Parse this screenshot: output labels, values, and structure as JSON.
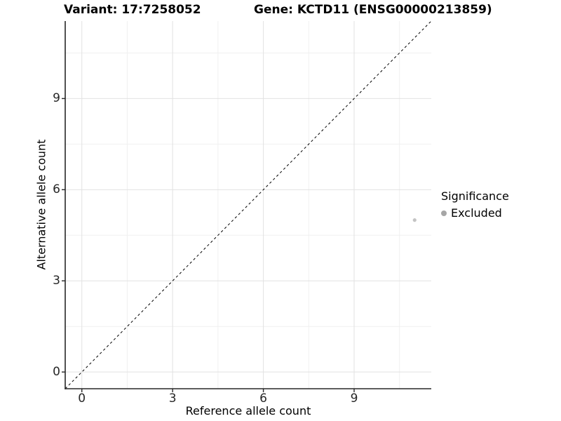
{
  "title": {
    "variant": "Variant: 17:7258052",
    "gene": "Gene: KCTD11 (ENSG00000213859)"
  },
  "chart_data": {
    "type": "scatter",
    "title": "Variant: 17:7258052   Gene: KCTD11 (ENSG00000213859)",
    "xlabel": "Reference allele count",
    "ylabel": "Alternative allele count",
    "xlim": [
      -0.55,
      11.55
    ],
    "ylim": [
      -0.55,
      11.55
    ],
    "x_ticks": [
      0,
      3,
      6,
      9
    ],
    "y_ticks": [
      0,
      3,
      6,
      9
    ],
    "x_minor_ticks": [
      1.5,
      4.5,
      7.5,
      10.5
    ],
    "y_minor_ticks": [
      1.5,
      4.5,
      7.5,
      10.5
    ],
    "grid": "major+minor",
    "legend_position": "right",
    "series": [
      {
        "name": "Excluded",
        "color": "#c4c4c4",
        "points": [
          [
            11,
            5
          ]
        ]
      }
    ],
    "identity_line": {
      "slope": 1,
      "intercept": 0,
      "style": "dashed",
      "color": "#000000"
    },
    "legend": {
      "title": "Significance",
      "entries": [
        {
          "label": "Excluded",
          "color": "#a6a6a6"
        }
      ]
    }
  },
  "colors": {
    "background": "#ffffff",
    "grid_major": "#e2e2e2",
    "grid_minor": "#f0f0f0",
    "axis": "#262626",
    "point": "#c4c4c4",
    "legend_key": "#a6a6a6",
    "text": "#000000"
  }
}
